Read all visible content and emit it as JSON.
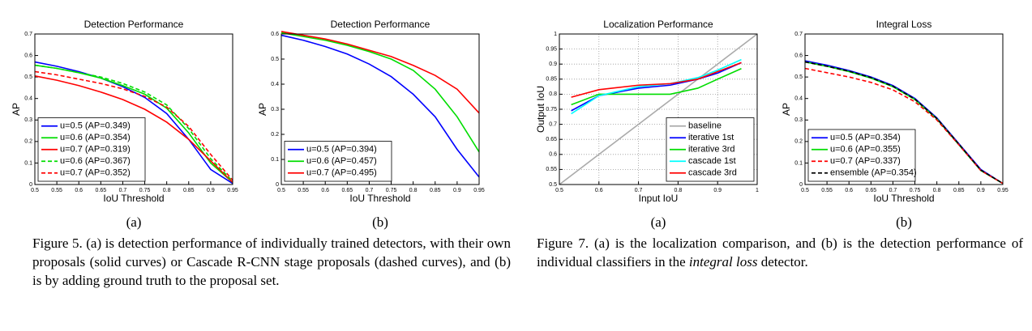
{
  "chart_data": [
    {
      "type": "line",
      "title": "Detection Performance",
      "xlabel": "IoU Threshold",
      "ylabel": "AP",
      "label": "(a)",
      "x": [
        0.5,
        0.55,
        0.6,
        0.65,
        0.7,
        0.75,
        0.8,
        0.85,
        0.9,
        0.95
      ],
      "xlim": [
        0.5,
        0.95
      ],
      "xticks": [
        0.5,
        0.55,
        0.6,
        0.65,
        0.7,
        0.75,
        0.8,
        0.85,
        0.9,
        0.95
      ],
      "ylim": [
        0,
        0.7
      ],
      "yticks": [
        0,
        0.1,
        0.2,
        0.3,
        0.4,
        0.5,
        0.6,
        0.7
      ],
      "grid": false,
      "legend": "lower left",
      "series": [
        {
          "name": "u=0.5 (AP=0.349)",
          "color": "#0000ff",
          "dashed": false,
          "values": [
            0.57,
            0.55,
            0.525,
            0.495,
            0.455,
            0.405,
            0.33,
            0.21,
            0.07,
            0.005
          ]
        },
        {
          "name": "u=0.6 (AP=0.354)",
          "color": "#00dd00",
          "dashed": false,
          "values": [
            0.555,
            0.54,
            0.52,
            0.495,
            0.46,
            0.42,
            0.355,
            0.24,
            0.1,
            0.01
          ]
        },
        {
          "name": "u=0.7 (AP=0.319)",
          "color": "#ff0000",
          "dashed": false,
          "values": [
            0.505,
            0.485,
            0.46,
            0.43,
            0.395,
            0.35,
            0.29,
            0.21,
            0.11,
            0.01
          ]
        },
        {
          "name": "u=0.6 (AP=0.367)",
          "color": "#00dd00",
          "dashed": true,
          "values": [
            0.555,
            0.54,
            0.52,
            0.5,
            0.47,
            0.43,
            0.37,
            0.26,
            0.12,
            0.015
          ]
        },
        {
          "name": "u=0.7 (AP=0.352)",
          "color": "#ff0000",
          "dashed": true,
          "values": [
            0.525,
            0.51,
            0.49,
            0.47,
            0.445,
            0.41,
            0.36,
            0.27,
            0.14,
            0.02
          ]
        }
      ]
    },
    {
      "type": "line",
      "title": "Detection Performance",
      "xlabel": "IoU Threshold",
      "ylabel": "AP",
      "label": "(b)",
      "x": [
        0.5,
        0.55,
        0.6,
        0.65,
        0.7,
        0.75,
        0.8,
        0.85,
        0.9,
        0.95
      ],
      "xlim": [
        0.5,
        0.95
      ],
      "xticks": [
        0.5,
        0.55,
        0.6,
        0.65,
        0.7,
        0.75,
        0.8,
        0.85,
        0.9,
        0.95
      ],
      "ylim": [
        0,
        0.6
      ],
      "yticks": [
        0,
        0.1,
        0.2,
        0.3,
        0.4,
        0.5,
        0.6
      ],
      "grid": false,
      "legend": "lower left",
      "series": [
        {
          "name": "u=0.5 (AP=0.394)",
          "color": "#0000ff",
          "dashed": false,
          "values": [
            0.595,
            0.575,
            0.55,
            0.52,
            0.48,
            0.43,
            0.36,
            0.27,
            0.14,
            0.03
          ]
        },
        {
          "name": "u=0.6 (AP=0.457)",
          "color": "#00dd00",
          "dashed": false,
          "values": [
            0.605,
            0.59,
            0.575,
            0.555,
            0.53,
            0.5,
            0.455,
            0.38,
            0.27,
            0.13
          ]
        },
        {
          "name": "u=0.7 (AP=0.495)",
          "color": "#ff0000",
          "dashed": false,
          "values": [
            0.61,
            0.595,
            0.58,
            0.56,
            0.535,
            0.51,
            0.475,
            0.435,
            0.38,
            0.285
          ]
        }
      ]
    },
    {
      "type": "line",
      "title": "Localization Performance",
      "xlabel": "Input IoU",
      "ylabel": "Output IoU",
      "label": "(a)",
      "x": [
        0.5,
        0.53,
        0.6,
        0.7,
        0.78,
        0.85,
        0.9,
        0.96,
        1
      ],
      "xlim": [
        0.5,
        1
      ],
      "xticks": [
        0.5,
        0.6,
        0.7,
        0.8,
        0.9,
        1
      ],
      "ylim": [
        0.5,
        1
      ],
      "yticks": [
        0.5,
        0.55,
        0.6,
        0.65,
        0.7,
        0.75,
        0.8,
        0.85,
        0.9,
        0.95,
        1
      ],
      "grid": true,
      "legend": "lower right",
      "series": [
        {
          "name": "baseline",
          "color": "#aaaaaa",
          "dashed": false,
          "values": [
            0.5,
            0.53,
            0.6,
            0.7,
            0.78,
            0.85,
            0.9,
            0.96,
            1
          ]
        },
        {
          "name": "iterative 1st",
          "color": "#0000ff",
          "dashed": false,
          "values": [
            null,
            0.745,
            0.795,
            0.82,
            0.83,
            0.85,
            0.87,
            0.905,
            null
          ]
        },
        {
          "name": "iterative 3rd",
          "color": "#00dd00",
          "dashed": false,
          "values": [
            null,
            0.765,
            0.8,
            0.8,
            0.8,
            0.82,
            0.85,
            0.885,
            null
          ]
        },
        {
          "name": "cascade 1st",
          "color": "#00ffff",
          "dashed": false,
          "values": [
            null,
            0.735,
            0.795,
            0.825,
            0.835,
            0.855,
            0.88,
            0.915,
            null
          ]
        },
        {
          "name": "cascade 3rd",
          "color": "#ff0000",
          "dashed": false,
          "values": [
            null,
            0.79,
            0.815,
            0.83,
            0.835,
            0.85,
            0.875,
            0.905,
            null
          ]
        }
      ]
    },
    {
      "type": "line",
      "title": "Integral Loss",
      "xlabel": "IoU Threshold",
      "ylabel": "AP",
      "label": "(b)",
      "x": [
        0.5,
        0.55,
        0.6,
        0.65,
        0.7,
        0.75,
        0.8,
        0.85,
        0.9,
        0.95
      ],
      "xlim": [
        0.5,
        0.95
      ],
      "xticks": [
        0.5,
        0.55,
        0.6,
        0.65,
        0.7,
        0.75,
        0.8,
        0.85,
        0.9,
        0.95
      ],
      "ylim": [
        0,
        0.7
      ],
      "yticks": [
        0,
        0.1,
        0.2,
        0.3,
        0.4,
        0.5,
        0.6,
        0.7
      ],
      "grid": false,
      "legend": "lower left",
      "series": [
        {
          "name": "u=0.5 (AP=0.354)",
          "color": "#0000ff",
          "dashed": false,
          "values": [
            0.575,
            0.555,
            0.53,
            0.5,
            0.46,
            0.4,
            0.31,
            0.19,
            0.07,
            0.005
          ]
        },
        {
          "name": "u=0.6 (AP=0.355)",
          "color": "#00dd00",
          "dashed": false,
          "values": [
            0.57,
            0.55,
            0.525,
            0.495,
            0.455,
            0.395,
            0.305,
            0.185,
            0.065,
            0.005
          ]
        },
        {
          "name": "u=0.7 (AP=0.337)",
          "color": "#ff0000",
          "dashed": true,
          "values": [
            0.54,
            0.52,
            0.5,
            0.475,
            0.44,
            0.385,
            0.3,
            0.185,
            0.065,
            0.005
          ]
        },
        {
          "name": "ensemble (AP=0.354)",
          "color": "#000000",
          "dashed": true,
          "values": [
            0.57,
            0.55,
            0.527,
            0.497,
            0.457,
            0.397,
            0.307,
            0.188,
            0.067,
            0.005
          ]
        }
      ]
    }
  ],
  "captions": [
    {
      "text": "Figure 5. (a) is detection performance of individually trained detectors, with their own proposals (solid curves) or Cascade R-CNN stage proposals (dashed curves), and (b) is by adding ground truth to the proposal set."
    },
    {
      "before": "Figure 7. (a) is the localization comparison, and (b) is the detection performance of individual classifiers in the ",
      "emphasis": "integral loss",
      "after": " detector."
    }
  ]
}
